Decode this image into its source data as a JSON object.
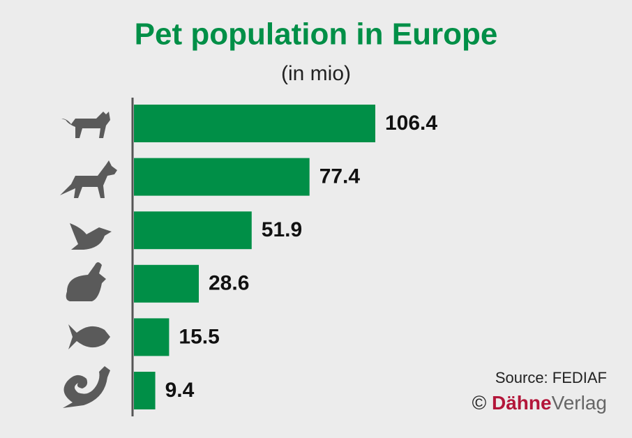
{
  "chart_data": {
    "type": "bar",
    "orientation": "horizontal",
    "title": "Pet population in Europe",
    "subtitle": "(in mio)",
    "categories": [
      null,
      null,
      null,
      null,
      null,
      null
    ],
    "values": [
      106.4,
      77.4,
      51.9,
      28.6,
      15.5,
      9.4
    ],
    "color": "#008f47",
    "source": "Source: FEDIAF",
    "copyright_symbol": "©",
    "brand": "Dähne",
    "brand_suffix": "Verlag"
  }
}
